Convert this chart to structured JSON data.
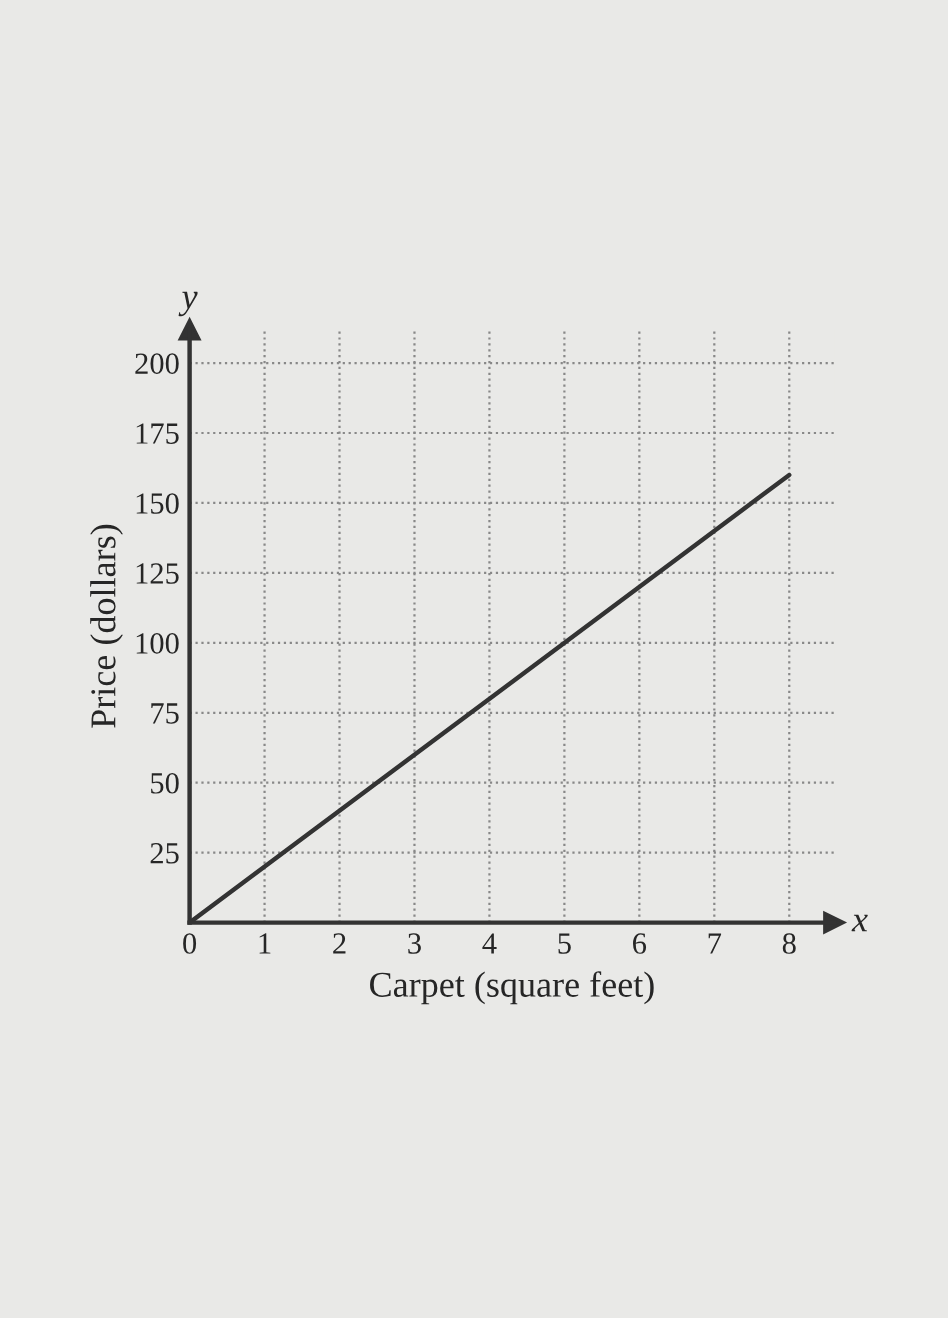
{
  "chart_data": {
    "type": "line",
    "xlabel": "Carpet (square feet)",
    "ylabel": "Price (dollars)",
    "x": [
      0,
      8
    ],
    "values": [
      0,
      160
    ],
    "color": "#333333",
    "xlim": [
      0,
      8.6
    ],
    "ylim": [
      0,
      212
    ],
    "xticks": [
      0,
      1,
      2,
      3,
      4,
      5,
      6,
      7,
      8
    ],
    "yticks": [
      25,
      50,
      75,
      100,
      125,
      150,
      175,
      200
    ],
    "grid": true,
    "marker": "none",
    "line_style": "solid",
    "annotations": [
      "x",
      "y"
    ]
  }
}
